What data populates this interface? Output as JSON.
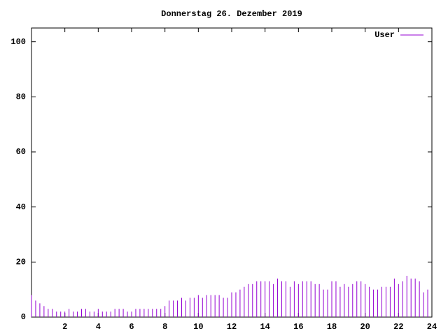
{
  "chart_data": {
    "type": "impulse",
    "title": "Donnerstag 26. Dezember 2019",
    "x": [
      0,
      0.25,
      0.5,
      0.75,
      1,
      1.25,
      1.5,
      1.75,
      2,
      2.25,
      2.5,
      2.75,
      3,
      3.25,
      3.5,
      3.75,
      4,
      4.25,
      4.5,
      4.75,
      5,
      5.25,
      5.5,
      5.75,
      6,
      6.25,
      6.5,
      6.75,
      7,
      7.25,
      7.5,
      7.75,
      8,
      8.25,
      8.5,
      8.75,
      9,
      9.25,
      9.5,
      9.75,
      10,
      10.25,
      10.5,
      10.75,
      11,
      11.25,
      11.5,
      11.75,
      12,
      12.25,
      12.5,
      12.75,
      13,
      13.25,
      13.5,
      13.75,
      14,
      14.25,
      14.5,
      14.75,
      15,
      15.25,
      15.5,
      15.75,
      16,
      16.25,
      16.5,
      16.75,
      17,
      17.25,
      17.5,
      17.75,
      18,
      18.25,
      18.5,
      18.75,
      19,
      19.25,
      19.5,
      19.75,
      20,
      20.25,
      20.5,
      20.75,
      21,
      21.25,
      21.5,
      21.75,
      22,
      22.25,
      22.5,
      22.75,
      23,
      23.25,
      23.5,
      23.75
    ],
    "series": [
      {
        "name": "User",
        "color": "#9400d3",
        "values": [
          8,
          6,
          5,
          4,
          3,
          3,
          2,
          2,
          2,
          3,
          2,
          2,
          3,
          3,
          2,
          2,
          3,
          2,
          2,
          2,
          3,
          3,
          3,
          2,
          2,
          3,
          3,
          3,
          3,
          3,
          3,
          3,
          4,
          6,
          6,
          6,
          7,
          6,
          7,
          7,
          8,
          7,
          8,
          8,
          8,
          8,
          7,
          7,
          9,
          9,
          10,
          11,
          12,
          12,
          13,
          13,
          13,
          13,
          12,
          14,
          13,
          13,
          11,
          13,
          12,
          13,
          13,
          13,
          12,
          12,
          10,
          10,
          13,
          13,
          11,
          12,
          11,
          12,
          13,
          13,
          12,
          11,
          10,
          10,
          11,
          11,
          11,
          14,
          12,
          13,
          15,
          14,
          14,
          13,
          9,
          10
        ]
      }
    ],
    "xlim": [
      0,
      24
    ],
    "ylim": [
      0,
      105
    ],
    "xticks": [
      2,
      4,
      6,
      8,
      10,
      12,
      14,
      16,
      18,
      20,
      22,
      24
    ],
    "yticks": [
      0,
      20,
      40,
      60,
      80,
      100
    ],
    "legend": "upper right"
  }
}
